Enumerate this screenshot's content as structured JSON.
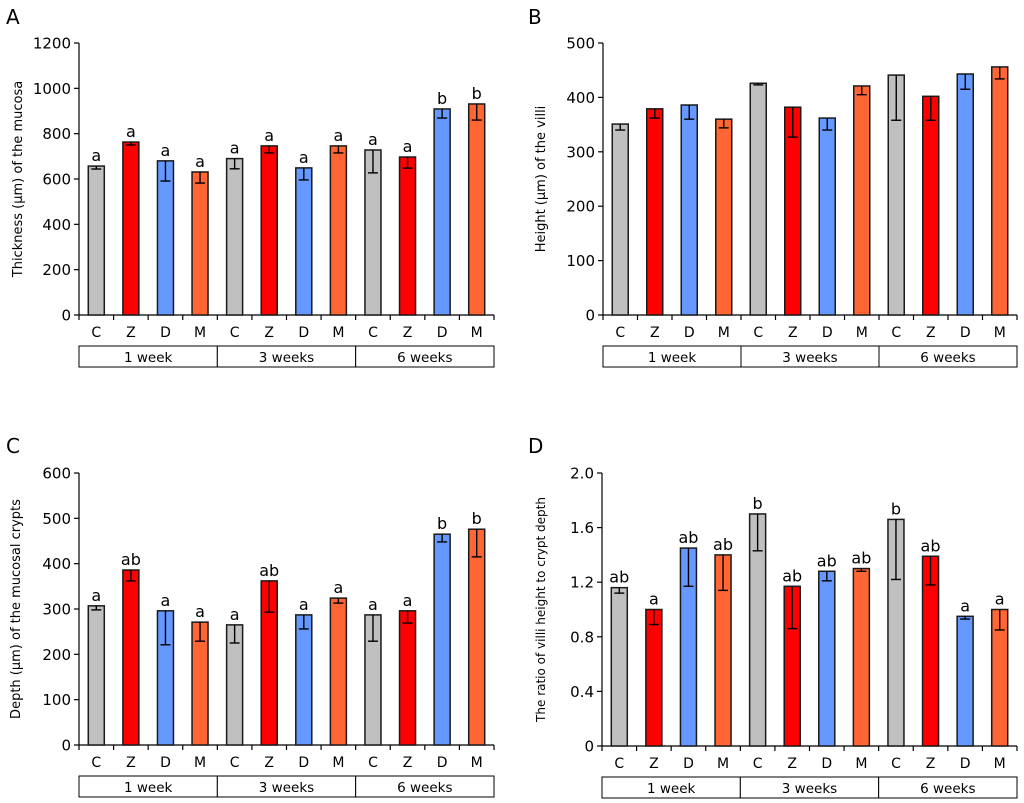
{
  "figure": {
    "categories": [
      "C",
      "Z",
      "D",
      "M",
      "C",
      "Z",
      "D",
      "M",
      "C",
      "Z",
      "D",
      "M"
    ],
    "groups": [
      "1 week",
      "3 weeks",
      "6 weeks"
    ],
    "colors": {
      "C": "#C0C0C0",
      "Z": "#FF0000",
      "D": "#6699FF",
      "M": "#FF6633"
    }
  },
  "chart_data": [
    {
      "panel": "A",
      "type": "bar",
      "title": "",
      "ylabel": "Thickness (μm) of the mucosa",
      "xlabel": "",
      "ylim": [
        0,
        1200
      ],
      "yticks": [
        0,
        200,
        400,
        600,
        800,
        1000,
        1200
      ],
      "ytick_labels": [
        "0",
        "200",
        "400",
        "600",
        "800",
        "1000",
        "1200"
      ],
      "categories": [
        "C",
        "Z",
        "D",
        "M",
        "C",
        "Z",
        "D",
        "M",
        "C",
        "Z",
        "D",
        "M"
      ],
      "groups": [
        "1 week",
        "3 weeks",
        "6 weeks"
      ],
      "values": [
        657,
        763,
        680,
        631,
        690,
        746,
        649,
        746,
        728,
        697,
        909,
        931
      ],
      "error_lower": [
        644,
        750,
        591,
        582,
        645,
        715,
        596,
        715,
        627,
        648,
        869,
        860
      ],
      "significance": [
        "a",
        "a",
        "a",
        "a",
        "a",
        "a",
        "a",
        "a",
        "a",
        "a",
        "b",
        "b"
      ]
    },
    {
      "panel": "B",
      "type": "bar",
      "title": "",
      "ylabel": "Height (μm) of the villi",
      "xlabel": "",
      "ylim": [
        0,
        500
      ],
      "yticks": [
        0,
        100,
        200,
        300,
        400,
        500
      ],
      "ytick_labels": [
        "0",
        "100",
        "200",
        "300",
        "400",
        "500"
      ],
      "categories": [
        "C",
        "Z",
        "D",
        "M",
        "C",
        "Z",
        "D",
        "M",
        "C",
        "Z",
        "D",
        "M"
      ],
      "groups": [
        "1 week",
        "3 weeks",
        "6 weeks"
      ],
      "values": [
        351,
        379,
        386,
        360,
        426,
        382,
        362,
        421,
        441,
        402,
        443,
        456
      ],
      "error_lower": [
        340,
        362,
        360,
        344,
        423,
        327,
        340,
        405,
        358,
        358,
        415,
        434
      ],
      "significance": [
        "",
        "",
        "",
        "",
        "",
        "",
        "",
        "",
        "",
        "",
        "",
        ""
      ]
    },
    {
      "panel": "C",
      "type": "bar",
      "title": "",
      "ylabel": "Depth (μm) of the mucosal crypts",
      "xlabel": "",
      "ylim": [
        0,
        600
      ],
      "yticks": [
        0,
        100,
        200,
        300,
        400,
        500,
        600
      ],
      "ytick_labels": [
        "0",
        "100",
        "200",
        "300",
        "400",
        "500",
        "600"
      ],
      "categories": [
        "C",
        "Z",
        "D",
        "M",
        "C",
        "Z",
        "D",
        "M",
        "C",
        "Z",
        "D",
        "M"
      ],
      "groups": [
        "1 week",
        "3 weeks",
        "6 weeks"
      ],
      "values": [
        307,
        386,
        296,
        271,
        265,
        362,
        287,
        324,
        287,
        296,
        465,
        476
      ],
      "error_lower": [
        298,
        362,
        221,
        229,
        225,
        293,
        256,
        313,
        229,
        269,
        448,
        415
      ],
      "significance": [
        "a",
        "ab",
        "a",
        "a",
        "a",
        "ab",
        "a",
        "a",
        "a",
        "a",
        "b",
        "b"
      ]
    },
    {
      "panel": "D",
      "type": "bar",
      "title": "",
      "ylabel": "The ratio of villi height to crypt depth",
      "xlabel": "",
      "ylim": [
        0,
        2.0
      ],
      "yticks": [
        0,
        0.4,
        0.8,
        1.2,
        1.6,
        2.0
      ],
      "ytick_labels": [
        "0",
        "0.4",
        "0.8",
        "1.2",
        "1.6",
        "2.0"
      ],
      "categories": [
        "C",
        "Z",
        "D",
        "M",
        "C",
        "Z",
        "D",
        "M",
        "C",
        "Z",
        "D",
        "M"
      ],
      "groups": [
        "1 week",
        "3 weeks",
        "6 weeks"
      ],
      "values": [
        1.16,
        1.0,
        1.45,
        1.4,
        1.7,
        1.17,
        1.28,
        1.3,
        1.66,
        1.39,
        0.95,
        1.0
      ],
      "error_lower": [
        1.12,
        0.89,
        1.17,
        1.14,
        1.43,
        0.86,
        1.21,
        1.28,
        1.22,
        1.18,
        0.93,
        0.85
      ],
      "significance": [
        "ab",
        "a",
        "ab",
        "ab",
        "b",
        "ab",
        "ab",
        "ab",
        "b",
        "ab",
        "a",
        "a"
      ]
    }
  ]
}
